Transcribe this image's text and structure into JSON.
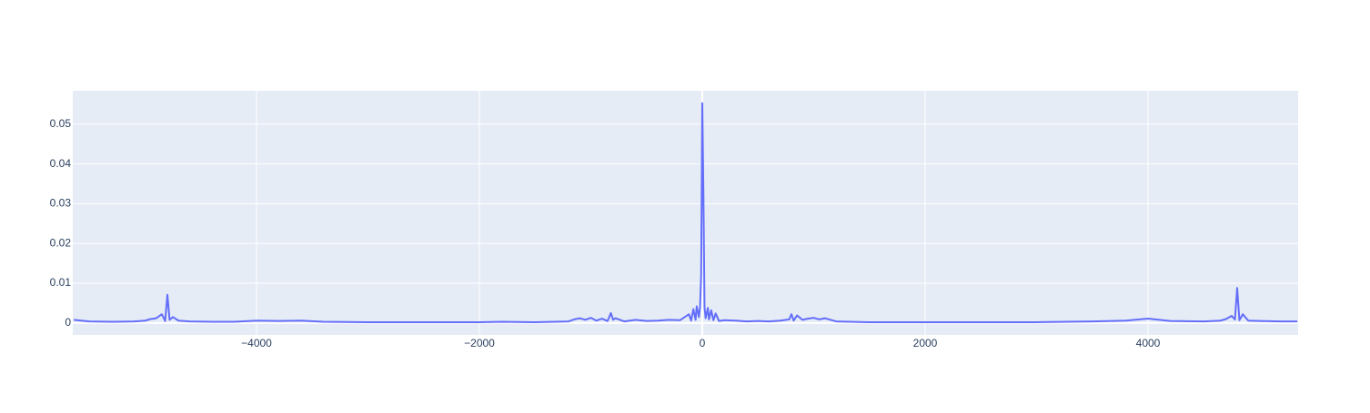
{
  "chart_data": {
    "type": "line",
    "x": [
      -5640,
      -5500,
      -5300,
      -5100,
      -5000,
      -4950,
      -4900,
      -4850,
      -4820,
      -4800,
      -4780,
      -4750,
      -4700,
      -4600,
      -4400,
      -4200,
      -4000,
      -3800,
      -3600,
      -3400,
      -3000,
      -2600,
      -2200,
      -2000,
      -1800,
      -1500,
      -1200,
      -1150,
      -1100,
      -1050,
      -1000,
      -950,
      -900,
      -850,
      -820,
      -800,
      -780,
      -700,
      -600,
      -500,
      -400,
      -300,
      -200,
      -120,
      -100,
      -80,
      -60,
      -50,
      -30,
      -20,
      -10,
      0,
      10,
      20,
      30,
      50,
      60,
      80,
      100,
      120,
      150,
      200,
      300,
      400,
      500,
      600,
      700,
      780,
      800,
      820,
      850,
      900,
      950,
      1000,
      1050,
      1100,
      1200,
      1500,
      2000,
      2500,
      3000,
      3500,
      3800,
      4000,
      4200,
      4500,
      4650,
      4700,
      4750,
      4780,
      4800,
      4820,
      4850,
      4900,
      5000,
      5200,
      5340
    ],
    "series": [
      {
        "color": "#636efa",
        "values": [
          0.0008,
          0.0004,
          0.0003,
          0.0004,
          0.0006,
          0.001,
          0.0012,
          0.0022,
          0.0005,
          0.0071,
          0.0008,
          0.0015,
          0.0006,
          0.0004,
          0.0003,
          0.0003,
          0.0006,
          0.0005,
          0.0006,
          0.0003,
          0.0002,
          0.0002,
          0.0002,
          0.0002,
          0.0003,
          0.0002,
          0.0004,
          0.0009,
          0.0012,
          0.0008,
          0.0013,
          0.0006,
          0.0011,
          0.0005,
          0.0025,
          0.0008,
          0.0012,
          0.0004,
          0.0008,
          0.0005,
          0.0006,
          0.0008,
          0.0007,
          0.0022,
          0.0006,
          0.0035,
          0.0008,
          0.0042,
          0.0015,
          0.004,
          0.012,
          0.0553,
          0.033,
          0.004,
          0.0012,
          0.0038,
          0.0009,
          0.0032,
          0.0007,
          0.0024,
          0.0005,
          0.0007,
          0.0006,
          0.0004,
          0.0005,
          0.0004,
          0.0006,
          0.0009,
          0.0022,
          0.0006,
          0.0019,
          0.0008,
          0.0011,
          0.0013,
          0.0009,
          0.0012,
          0.0004,
          0.0002,
          0.0002,
          0.0002,
          0.0002,
          0.0004,
          0.0006,
          0.0011,
          0.0005,
          0.0004,
          0.0006,
          0.001,
          0.0018,
          0.0009,
          0.0088,
          0.0007,
          0.0022,
          0.0006,
          0.0005,
          0.0004,
          0.0004
        ]
      }
    ],
    "xlim": [
      -5649,
      5347
    ],
    "ylim": [
      -0.003,
      0.0584
    ],
    "xticks": [
      {
        "value": -4000,
        "label": "−4000"
      },
      {
        "value": -2000,
        "label": "−2000"
      },
      0,
      2000,
      4000
    ],
    "yticks": [
      0,
      0.01,
      0.02,
      0.03,
      0.04,
      0.05
    ],
    "grid": true
  }
}
